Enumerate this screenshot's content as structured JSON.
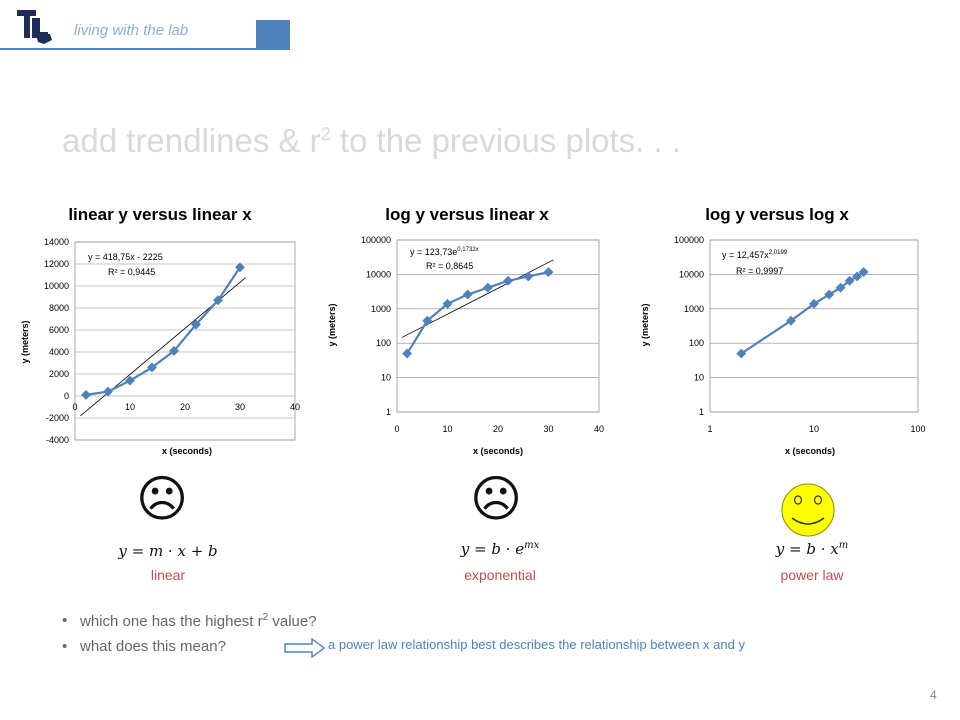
{
  "header": {
    "subtitle": "living with the lab"
  },
  "slide": {
    "title_prefix": "add trendlines & r",
    "title_sup": "2",
    "title_suffix": " to the previous plots. . ."
  },
  "colors": {
    "series": "#4f81bd",
    "accent": "#c0504d",
    "title": "#d9d9d9"
  },
  "chart_data": [
    {
      "type": "scatter",
      "title": "linear y versus linear x",
      "xlabel": "x (seconds)",
      "ylabel": "y (meters)",
      "xlim": [
        0,
        40
      ],
      "ylim": [
        -4000,
        14000
      ],
      "x_ticks": [
        "0",
        "10",
        "20",
        "30",
        "40"
      ],
      "y_ticks": [
        "14000",
        "12000",
        "10000",
        "8000",
        "6000",
        "4000",
        "2000",
        "0",
        "-2000",
        "-4000"
      ],
      "x": [
        2,
        6,
        10,
        14,
        18,
        22,
        26,
        30
      ],
      "y": [
        100,
        400,
        1400,
        2600,
        4100,
        6500,
        8700,
        11700
      ],
      "trend_equation": "y = 418,75x - 2225",
      "r2_label": "R² = 0,9445",
      "trend_type": "linear"
    },
    {
      "type": "scatter",
      "title": "log y versus linear x",
      "xlabel": "x (seconds)",
      "ylabel": "y (meters)",
      "xlim": [
        0,
        40
      ],
      "ylim": [
        1,
        100000
      ],
      "y_scale": "log",
      "x_ticks": [
        "0",
        "10",
        "20",
        "30",
        "40"
      ],
      "y_ticks": [
        "100000",
        "10000",
        "1000",
        "100",
        "10",
        "1"
      ],
      "x": [
        2,
        6,
        10,
        14,
        18,
        22,
        26,
        30
      ],
      "y": [
        50,
        450,
        1400,
        2600,
        4100,
        6500,
        8700,
        11700
      ],
      "trend_equation_base": "y = 123,73e",
      "trend_equation_exp": "0,1732x",
      "r2_label": "R² = 0,8645",
      "trend_type": "exponential"
    },
    {
      "type": "scatter",
      "title": "log y versus log x",
      "xlabel": "x (seconds)",
      "ylabel": "y (meters)",
      "xlim": [
        1,
        100
      ],
      "ylim": [
        1,
        100000
      ],
      "x_scale": "log",
      "y_scale": "log",
      "x_ticks": [
        "1",
        "10",
        "100"
      ],
      "y_ticks": [
        "100000",
        "10000",
        "1000",
        "100",
        "10",
        "1"
      ],
      "x": [
        2,
        6,
        10,
        14,
        18,
        22,
        26,
        30
      ],
      "y": [
        50,
        450,
        1400,
        2600,
        4100,
        6500,
        8700,
        11700
      ],
      "trend_equation_base": "y = 12,457x",
      "trend_equation_exp": "2,0199",
      "r2_label": "R² = 0,9997",
      "trend_type": "power"
    }
  ],
  "models": [
    {
      "formula": "y = m · x + b",
      "name": "linear",
      "face": "☹"
    },
    {
      "formula": "y = b · e^mx",
      "name": "exponential",
      "face": "☹"
    },
    {
      "formula": "y = b · x^m",
      "name": "power law",
      "face": "smiley"
    }
  ],
  "questions": [
    {
      "text_prefix": "which one has the highest r",
      "text_sup": "2",
      "text_suffix": " value?"
    },
    {
      "text": "what does this mean?"
    }
  ],
  "answer": "a power law relationship best describes the relationship between x and y",
  "page_number": "4"
}
